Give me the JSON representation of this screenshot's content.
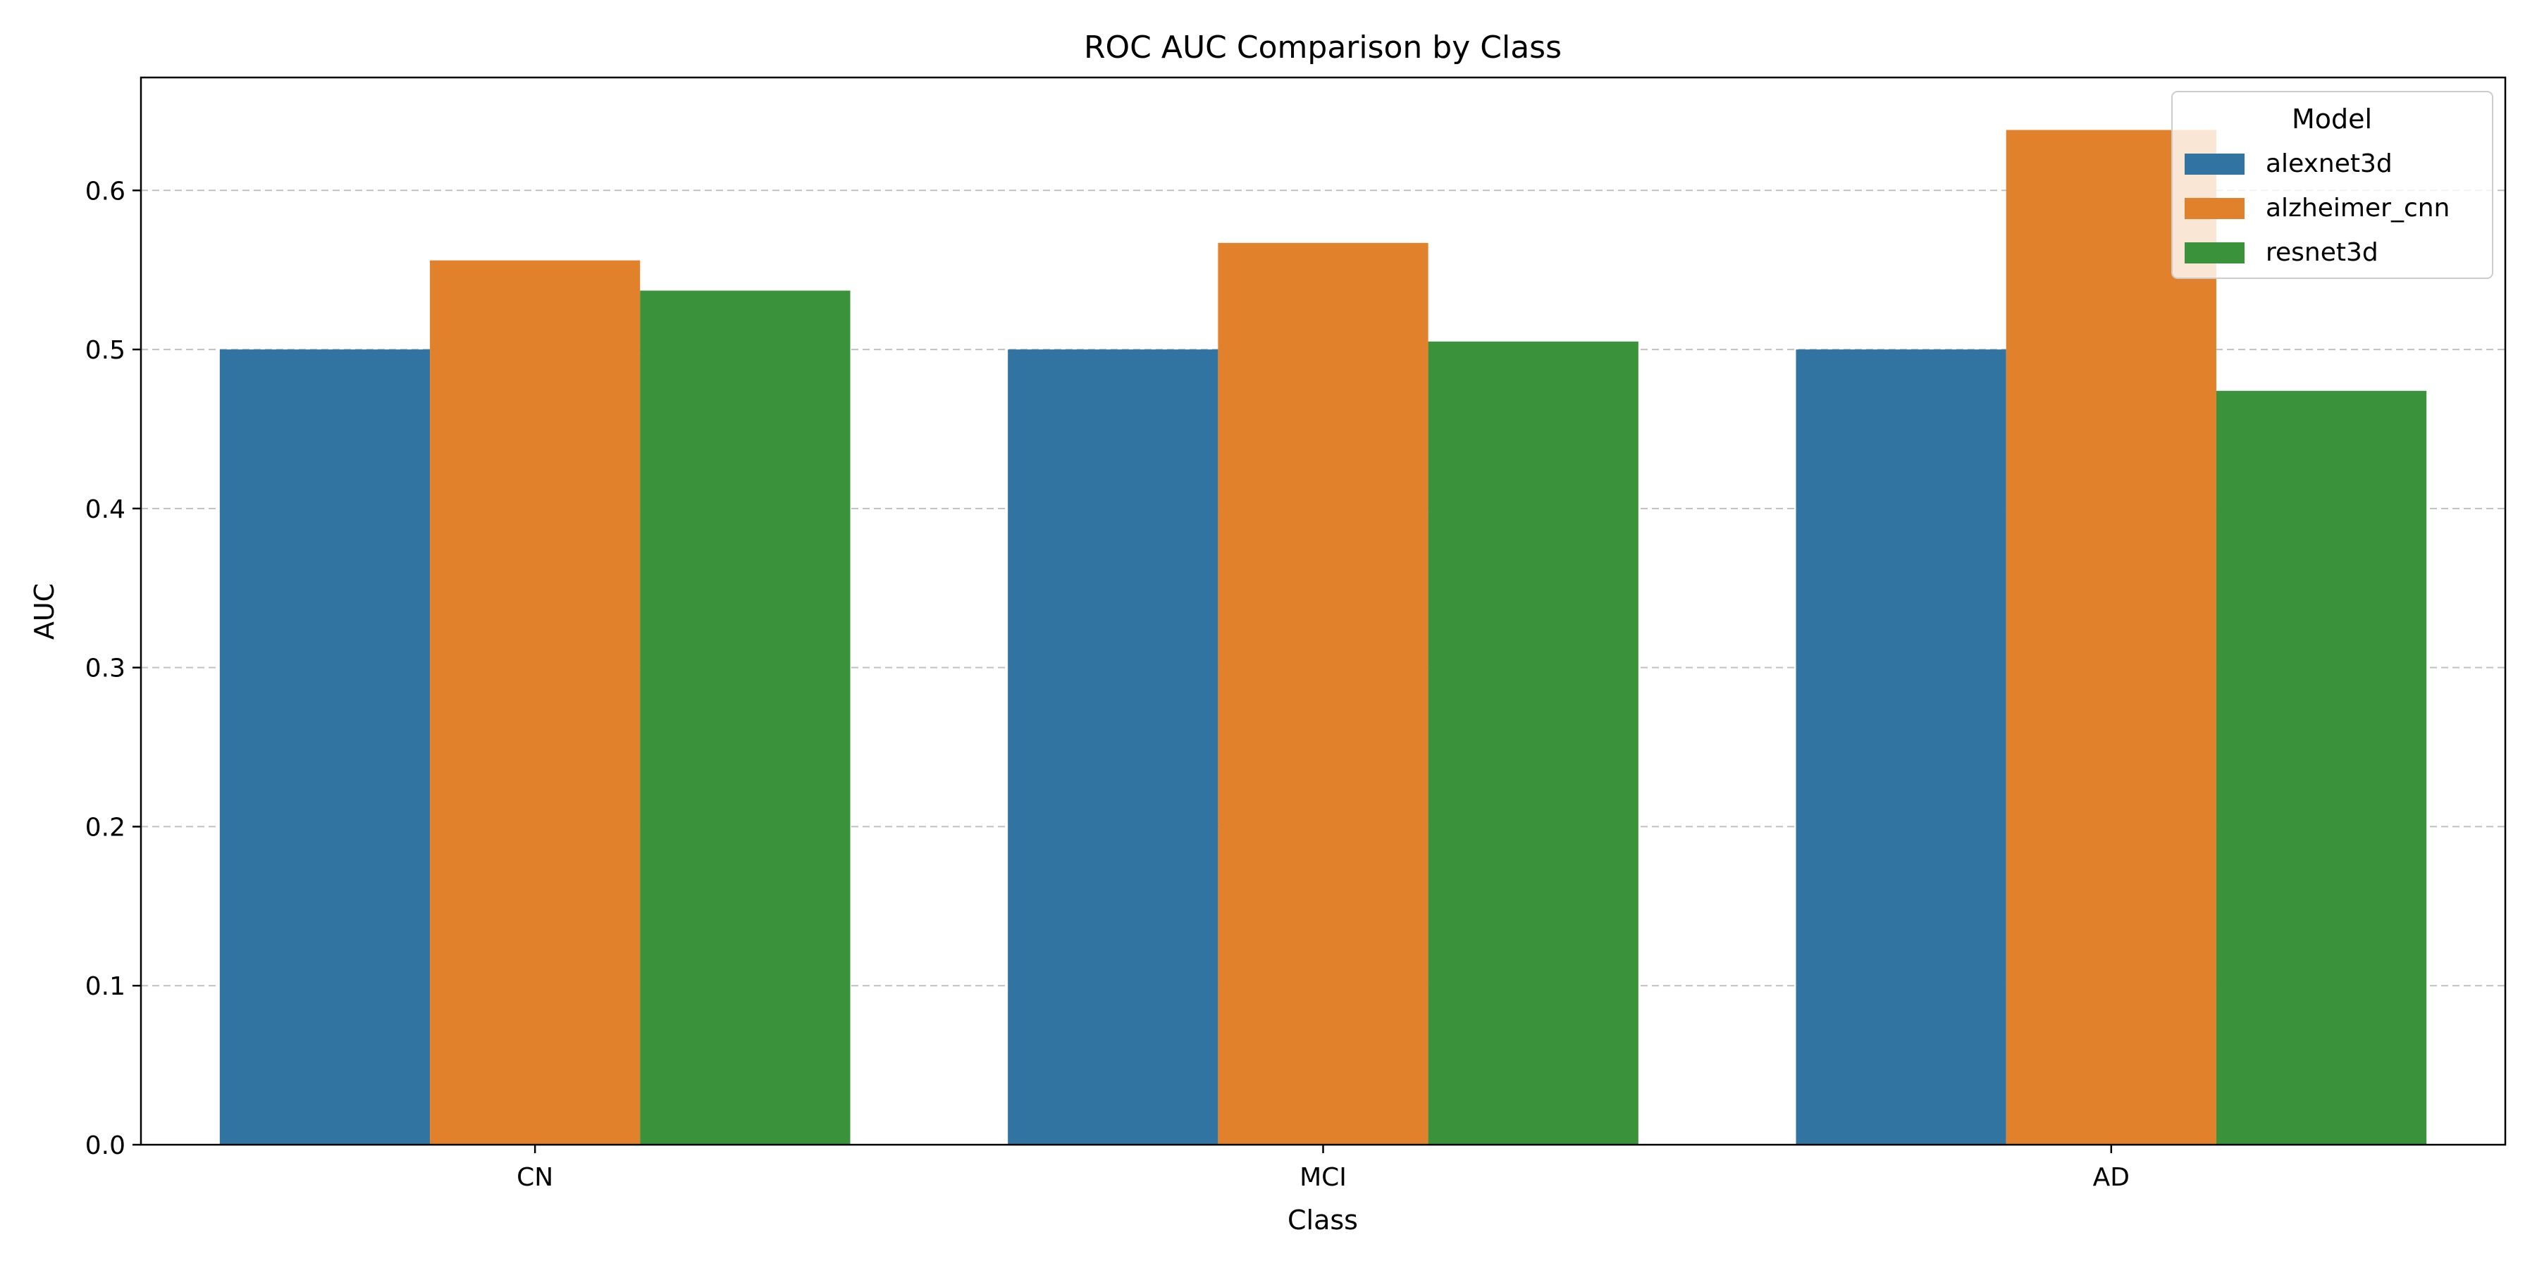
{
  "chart_data": {
    "type": "bar",
    "title": "ROC AUC Comparison by Class",
    "xlabel": "Class",
    "ylabel": "AUC",
    "categories": [
      "CN",
      "MCI",
      "AD"
    ],
    "series": [
      {
        "name": "alexnet3d",
        "color": "#3274a1",
        "values": [
          0.5,
          0.5,
          0.5
        ]
      },
      {
        "name": "alzheimer_cnn",
        "color": "#e1812c",
        "values": [
          0.556,
          0.567,
          0.638
        ]
      },
      {
        "name": "resnet3d",
        "color": "#3a923a",
        "values": [
          0.537,
          0.505,
          0.474
        ]
      }
    ],
    "ylim": [
      0,
      0.671
    ],
    "yticks": [
      "0.0",
      "0.1",
      "0.2",
      "0.3",
      "0.4",
      "0.5",
      "0.6"
    ],
    "grid": "y-dashed",
    "legend": {
      "title": "Model",
      "placement": "top-right"
    }
  }
}
